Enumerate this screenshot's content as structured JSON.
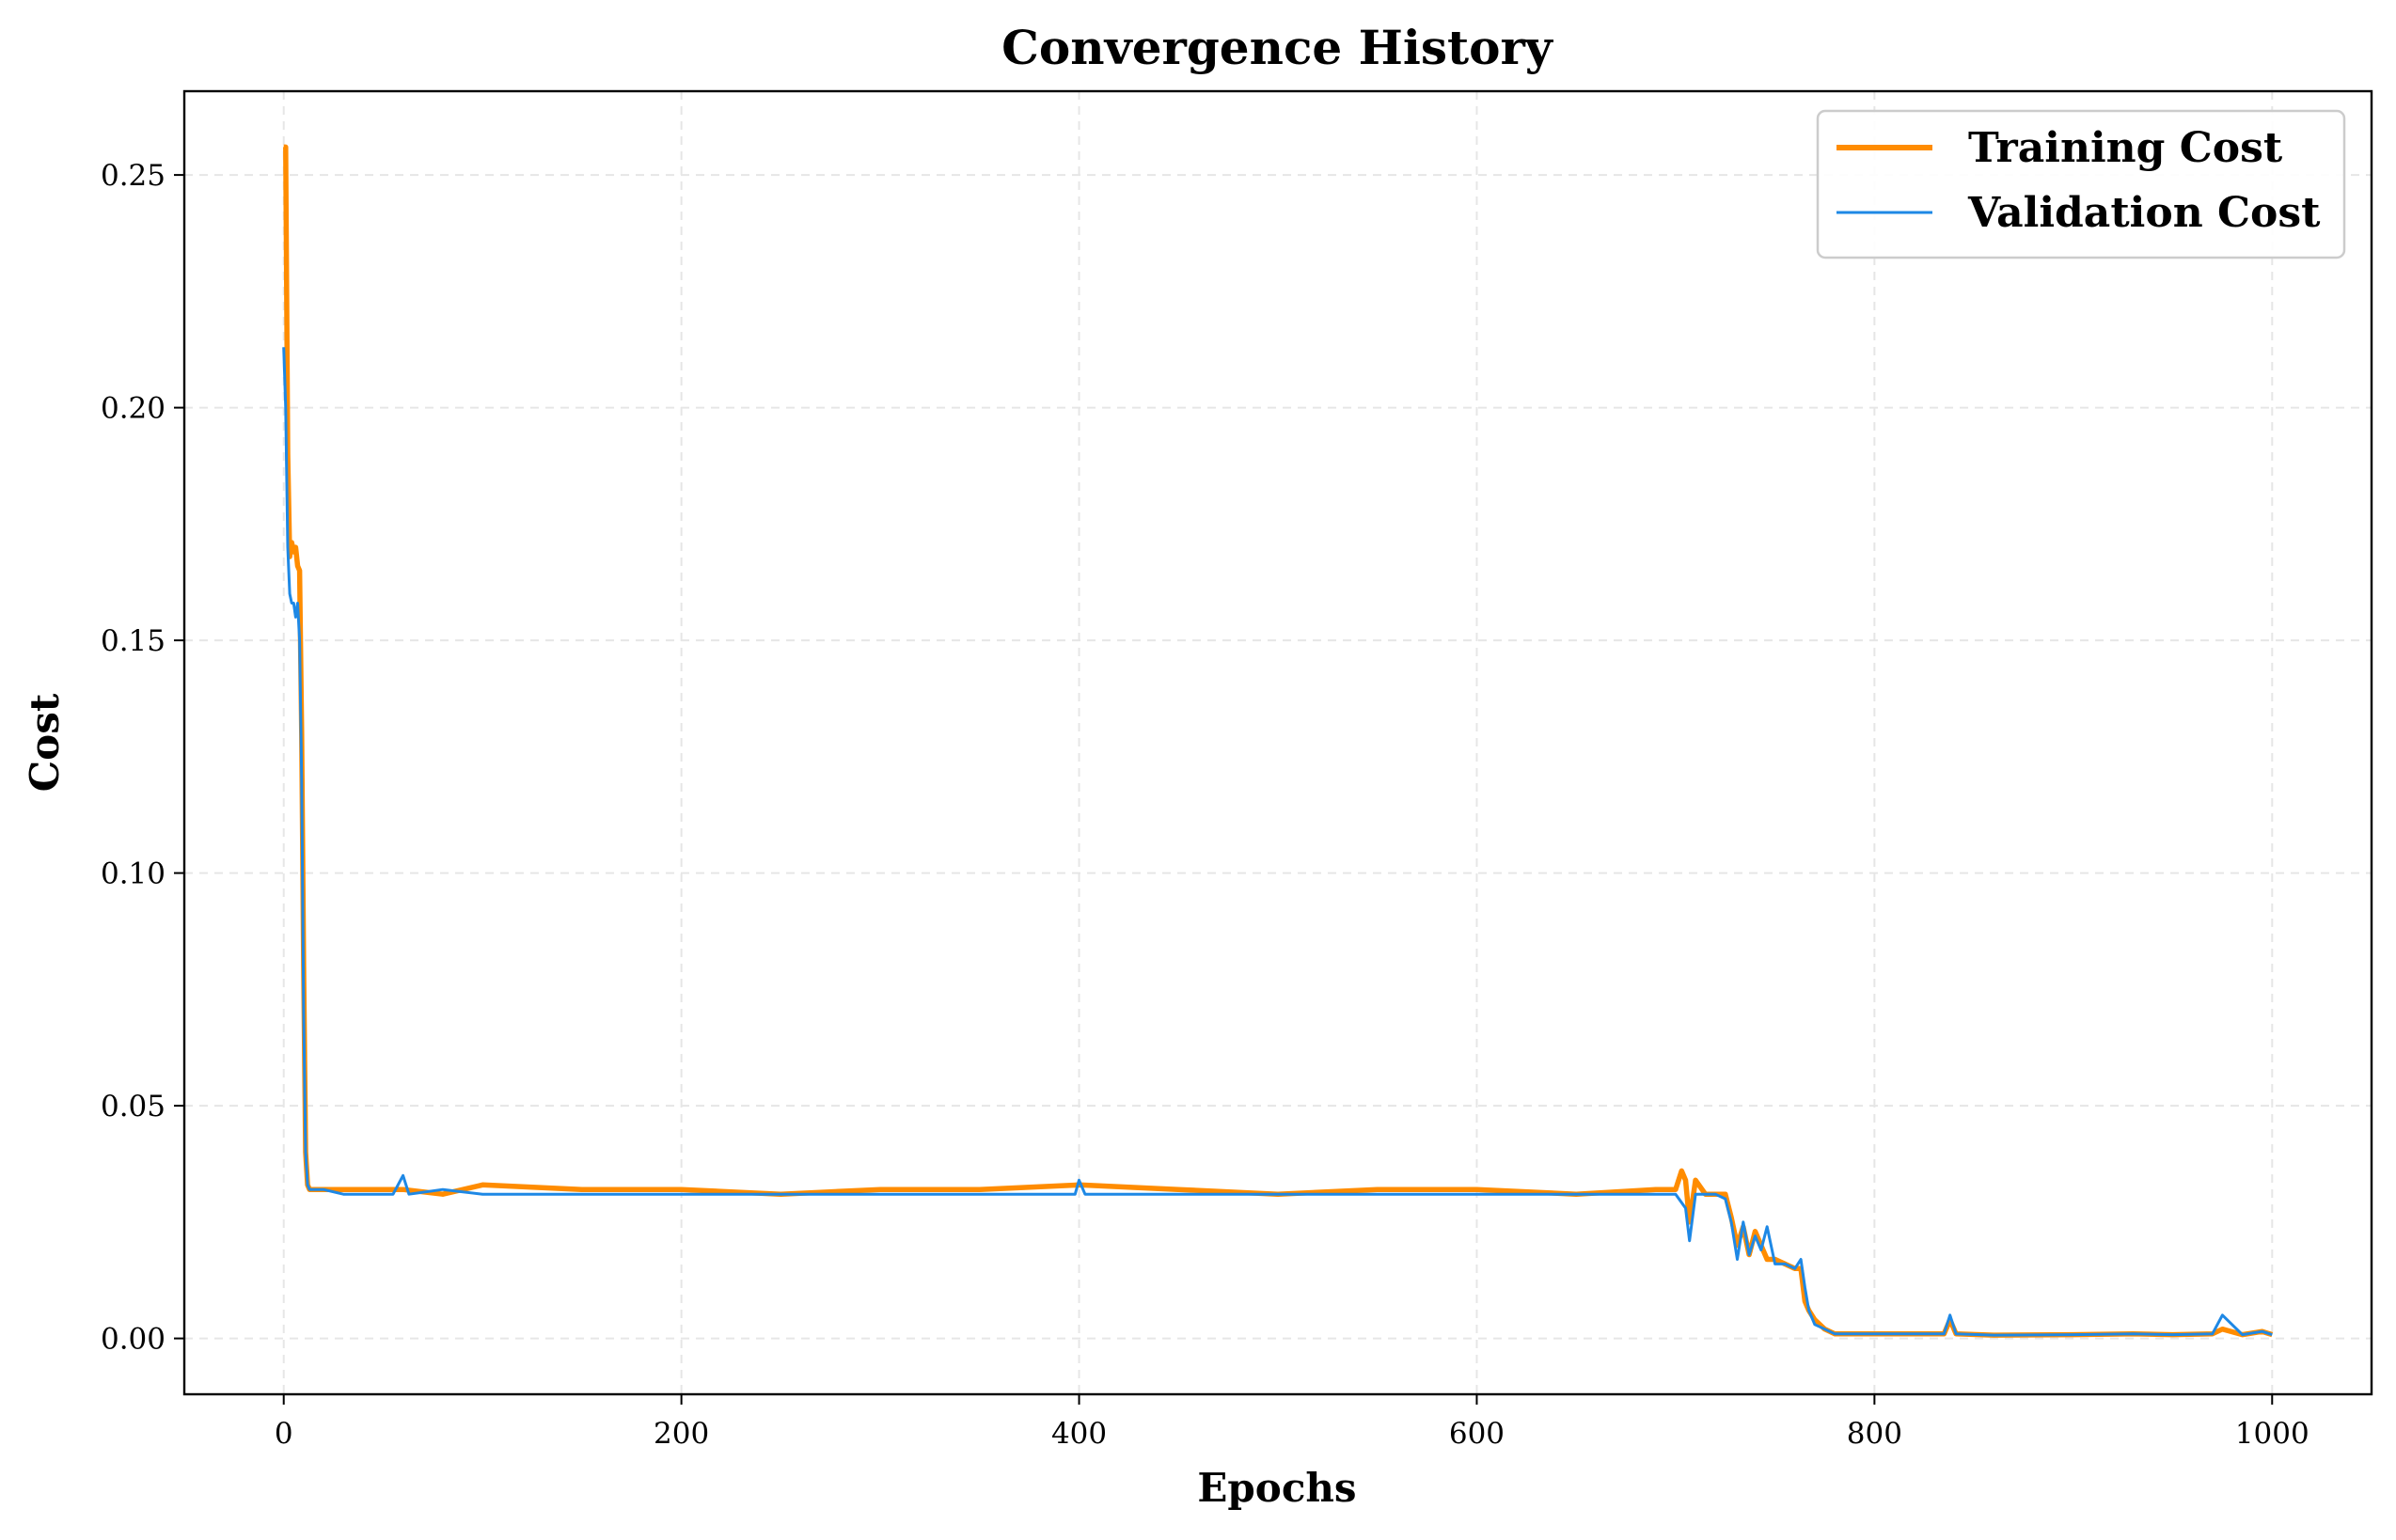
{
  "chart_data": {
    "type": "line",
    "title": "Convergence History",
    "xlabel": "Epochs",
    "ylabel": "Cost",
    "xlim": [
      -50,
      1050
    ],
    "ylim": [
      -0.012,
      0.268
    ],
    "x_ticks": [
      0,
      200,
      400,
      600,
      800,
      1000
    ],
    "x_tick_labels": [
      "0",
      "200",
      "400",
      "600",
      "800",
      "1000"
    ],
    "y_ticks": [
      0.0,
      0.05,
      0.1,
      0.15,
      0.2,
      0.25
    ],
    "y_tick_labels": [
      "0.00",
      "0.05",
      "0.10",
      "0.15",
      "0.20",
      "0.25"
    ],
    "grid": true,
    "legend_position": "top-right",
    "series": [
      {
        "name": "Training Cost",
        "color": "#ff8c00",
        "x": [
          0,
          1,
          2,
          3,
          4,
          5,
          6,
          7,
          8,
          9,
          10,
          11,
          12,
          13,
          14,
          16,
          20,
          30,
          40,
          60,
          80,
          100,
          150,
          200,
          250,
          300,
          350,
          400,
          450,
          500,
          550,
          600,
          650,
          690,
          700,
          703,
          705,
          707,
          710,
          715,
          720,
          725,
          728,
          731,
          734,
          737,
          740,
          743,
          746,
          750,
          755,
          760,
          763,
          765,
          767,
          770,
          775,
          780,
          790,
          800,
          820,
          835,
          838,
          841,
          860,
          900,
          930,
          950,
          970,
          975,
          985,
          995,
          1000
        ],
        "y": [
          0.256,
          0.256,
          0.19,
          0.168,
          0.171,
          0.169,
          0.17,
          0.166,
          0.165,
          0.13,
          0.08,
          0.04,
          0.033,
          0.032,
          0.032,
          0.032,
          0.032,
          0.032,
          0.032,
          0.032,
          0.031,
          0.033,
          0.032,
          0.032,
          0.031,
          0.032,
          0.032,
          0.033,
          0.032,
          0.031,
          0.032,
          0.032,
          0.031,
          0.032,
          0.032,
          0.036,
          0.034,
          0.025,
          0.034,
          0.031,
          0.031,
          0.031,
          0.026,
          0.02,
          0.024,
          0.018,
          0.023,
          0.02,
          0.017,
          0.017,
          0.016,
          0.015,
          0.015,
          0.008,
          0.006,
          0.004,
          0.002,
          0.001,
          0.001,
          0.001,
          0.001,
          0.001,
          0.004,
          0.001,
          0.0007,
          0.0008,
          0.001,
          0.0008,
          0.001,
          0.002,
          0.0008,
          0.0015,
          0.0008
        ]
      },
      {
        "name": "Validation Cost",
        "color": "#1e88e5",
        "x": [
          0,
          1,
          2,
          3,
          4,
          5,
          6,
          7,
          8,
          9,
          10,
          11,
          12,
          13,
          14,
          16,
          20,
          30,
          40,
          55,
          60,
          63,
          80,
          100,
          150,
          200,
          250,
          300,
          350,
          398,
          400,
          403,
          450,
          500,
          550,
          600,
          650,
          690,
          700,
          705,
          707,
          710,
          715,
          720,
          725,
          728,
          731,
          734,
          737,
          740,
          743,
          746,
          750,
          755,
          760,
          763,
          765,
          767,
          770,
          775,
          780,
          790,
          800,
          820,
          835,
          838,
          841,
          860,
          900,
          930,
          950,
          970,
          975,
          985,
          995,
          1000
        ],
        "y": [
          0.213,
          0.2,
          0.17,
          0.16,
          0.158,
          0.158,
          0.155,
          0.158,
          0.15,
          0.12,
          0.07,
          0.04,
          0.033,
          0.032,
          0.032,
          0.032,
          0.032,
          0.031,
          0.031,
          0.031,
          0.035,
          0.031,
          0.032,
          0.031,
          0.031,
          0.031,
          0.031,
          0.031,
          0.031,
          0.031,
          0.034,
          0.031,
          0.031,
          0.031,
          0.031,
          0.031,
          0.031,
          0.031,
          0.031,
          0.028,
          0.021,
          0.031,
          0.031,
          0.031,
          0.03,
          0.025,
          0.017,
          0.025,
          0.018,
          0.022,
          0.019,
          0.024,
          0.016,
          0.016,
          0.015,
          0.017,
          0.011,
          0.006,
          0.003,
          0.002,
          0.001,
          0.001,
          0.001,
          0.001,
          0.001,
          0.005,
          0.001,
          0.0007,
          0.0008,
          0.001,
          0.0008,
          0.001,
          0.005,
          0.0008,
          0.0015,
          0.0008
        ]
      }
    ]
  }
}
